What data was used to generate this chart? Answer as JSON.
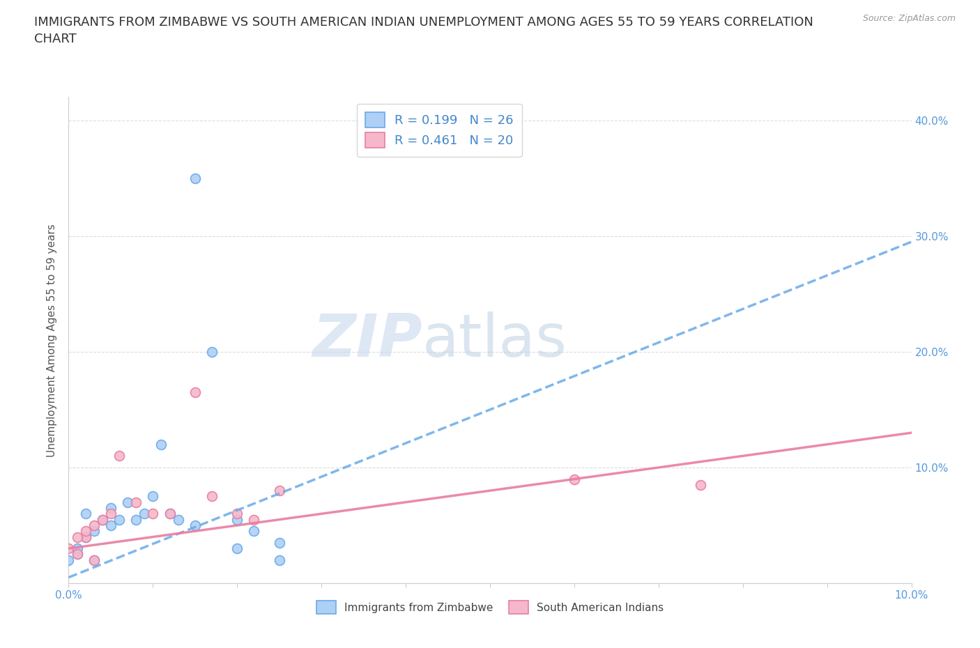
{
  "title": "IMMIGRANTS FROM ZIMBABWE VS SOUTH AMERICAN INDIAN UNEMPLOYMENT AMONG AGES 55 TO 59 YEARS CORRELATION\nCHART",
  "source": "Source: ZipAtlas.com",
  "ylabel": "Unemployment Among Ages 55 to 59 years",
  "xlim": [
    0.0,
    0.1
  ],
  "ylim": [
    0.0,
    0.42
  ],
  "x_ticks": [
    0.0,
    0.01,
    0.02,
    0.03,
    0.04,
    0.05,
    0.06,
    0.07,
    0.08,
    0.09,
    0.1
  ],
  "x_tick_labels": [
    "0.0%",
    "",
    "",
    "",
    "",
    "",
    "",
    "",
    "",
    "",
    "10.0%"
  ],
  "y_ticks": [
    0.0,
    0.1,
    0.2,
    0.3,
    0.4
  ],
  "y_tick_labels_right": [
    "",
    "10.0%",
    "20.0%",
    "30.0%",
    "40.0%"
  ],
  "zimbabwe_color": "#aed0f5",
  "zimbabwe_edge_color": "#6aaae8",
  "sa_indian_color": "#f5b8cb",
  "sa_indian_edge_color": "#e87da0",
  "trendline_blue_color": "#6aaae8",
  "trendline_pink_color": "#e87da0",
  "R_zimbabwe": 0.199,
  "N_zimbabwe": 26,
  "R_sa_indian": 0.461,
  "N_sa_indian": 20,
  "legend_label_1": "Immigrants from Zimbabwe",
  "legend_label_2": "South American Indians",
  "watermark_zip": "ZIP",
  "watermark_atlas": "atlas",
  "background_color": "#ffffff",
  "grid_color": "#dddddd",
  "title_fontsize": 13,
  "axis_label_fontsize": 11,
  "tick_fontsize": 11,
  "marker_size": 100,
  "zimbabwe_x": [
    0.0,
    0.001,
    0.001,
    0.002,
    0.002,
    0.003,
    0.003,
    0.004,
    0.005,
    0.005,
    0.006,
    0.007,
    0.008,
    0.009,
    0.01,
    0.011,
    0.012,
    0.013,
    0.015,
    0.017,
    0.02,
    0.022,
    0.025,
    0.015,
    0.02,
    0.025
  ],
  "zimbabwe_y": [
    0.02,
    0.025,
    0.03,
    0.04,
    0.06,
    0.045,
    0.02,
    0.055,
    0.065,
    0.05,
    0.055,
    0.07,
    0.055,
    0.06,
    0.075,
    0.12,
    0.06,
    0.055,
    0.35,
    0.2,
    0.055,
    0.045,
    0.035,
    0.05,
    0.03,
    0.02
  ],
  "sa_indian_x": [
    0.0,
    0.001,
    0.002,
    0.003,
    0.004,
    0.005,
    0.006,
    0.008,
    0.01,
    0.012,
    0.015,
    0.017,
    0.02,
    0.022,
    0.025,
    0.06,
    0.075,
    0.003,
    0.002,
    0.001
  ],
  "sa_indian_y": [
    0.03,
    0.025,
    0.04,
    0.05,
    0.055,
    0.06,
    0.11,
    0.07,
    0.06,
    0.06,
    0.165,
    0.075,
    0.06,
    0.055,
    0.08,
    0.09,
    0.085,
    0.02,
    0.045,
    0.04
  ]
}
